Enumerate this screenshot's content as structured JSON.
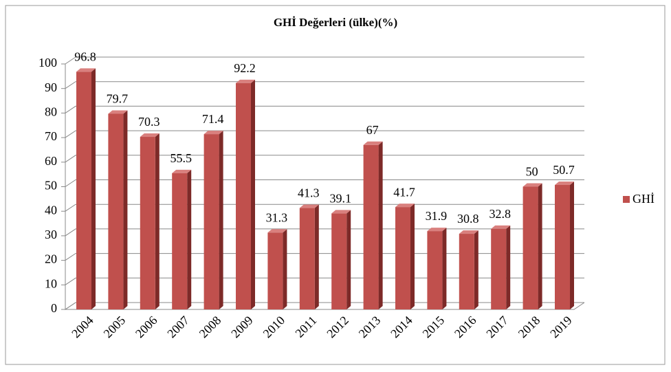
{
  "chart_data": {
    "type": "bar",
    "title": "GHİ Değerleri (ülke)(%)",
    "categories": [
      "2004",
      "2005",
      "2006",
      "2007",
      "2008",
      "2009",
      "2010",
      "2011",
      "2012",
      "2013",
      "2014",
      "2015",
      "2016",
      "2017",
      "2018",
      "2019"
    ],
    "series": [
      {
        "name": "GHİ",
        "color": "#c0504d",
        "values": [
          96.8,
          79.7,
          70.3,
          55.5,
          71.4,
          92.2,
          31.3,
          41.3,
          39.1,
          67,
          41.7,
          31.9,
          30.8,
          32.8,
          50,
          50.7
        ]
      }
    ],
    "ylim": [
      0,
      100
    ],
    "yticks": [
      0,
      10,
      20,
      30,
      40,
      50,
      60,
      70,
      80,
      90,
      100
    ],
    "grid": true,
    "legend": "right"
  }
}
